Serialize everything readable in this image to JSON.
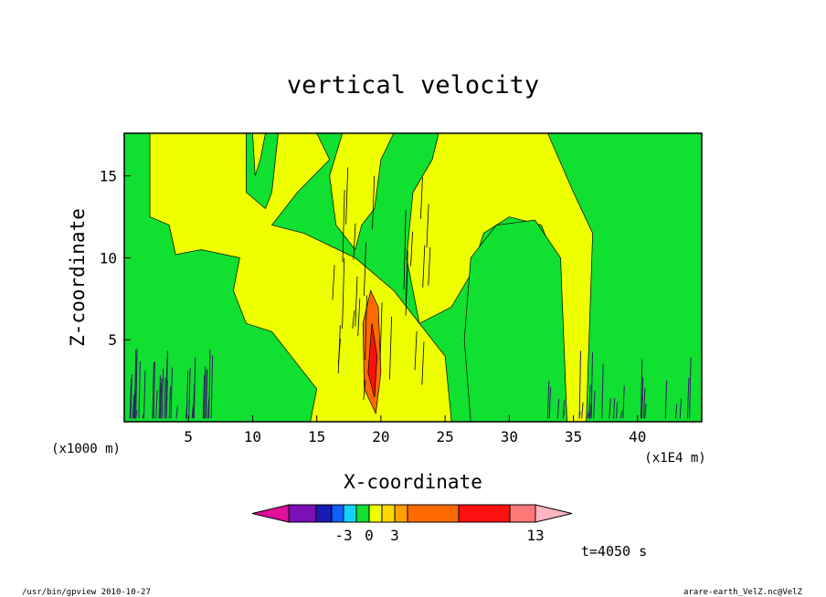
{
  "chart_data": {
    "type": "heatmap",
    "title": "vertical velocity",
    "xlabel": "X-coordinate",
    "ylabel": "Z-coordinate",
    "x_unit": "(x1E4 m)",
    "y_unit": "(x1000 m)",
    "x_ticks": [
      5,
      10,
      15,
      20,
      25,
      30,
      35,
      40
    ],
    "y_ticks": [
      5,
      10,
      15
    ],
    "xlim": [
      0,
      45
    ],
    "ylim": [
      0,
      17.6
    ],
    "colorbar": {
      "colors": [
        "#e0109a",
        "#7a10b5",
        "#1a1ab4",
        "#1060ff",
        "#10d4ff",
        "#10e030",
        "#eeff00",
        "#ffd800",
        "#ffa000",
        "#ff6a00",
        "#ff1010",
        "#ff7878",
        "#ffb6c1"
      ],
      "labels": [
        "-3",
        "0",
        "3",
        "13"
      ],
      "label_after_box": [
        3,
        5,
        7,
        11
      ]
    },
    "time_label": "t=4050 s",
    "footer_left": "/usr/bin/gpview  2010-10-27",
    "footer_right": "arare-earth_VelZ.nc@VelZ"
  }
}
